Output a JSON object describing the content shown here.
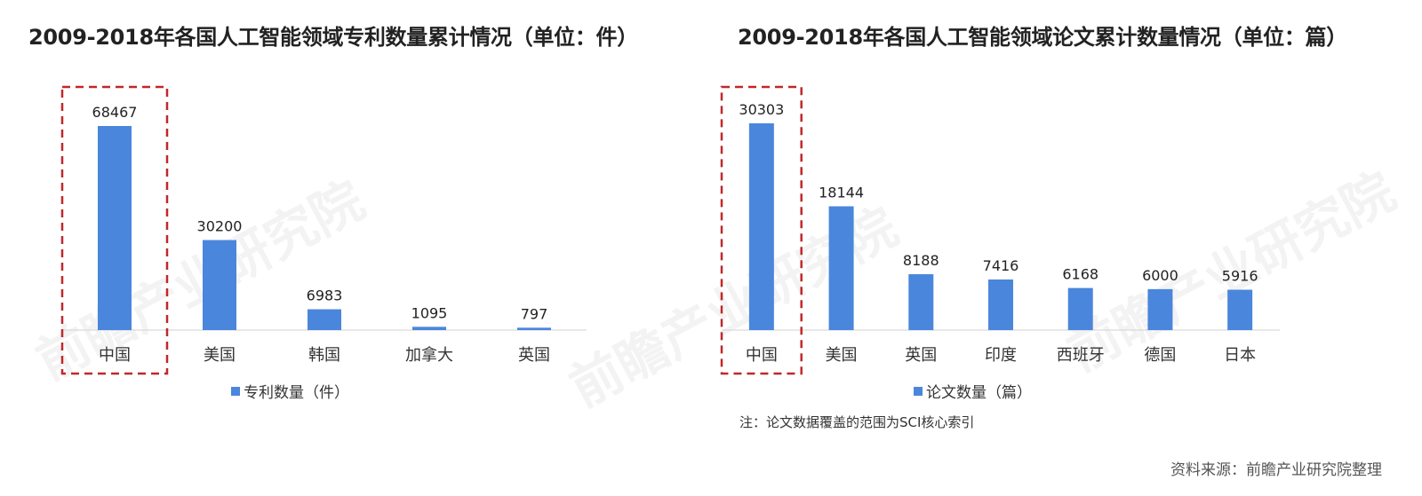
{
  "watermark": "前瞻产业研究院",
  "colors": {
    "bar": "#4a86dc",
    "highlight": "#c0282a"
  },
  "footer": {
    "source": "资料来源：前瞻产业研究院整理"
  },
  "chart_data": [
    {
      "type": "bar",
      "title": "2009-2018年各国人工智能领域专利数量累计情况（单位：件）",
      "categories": [
        "中国",
        "美国",
        "韩国",
        "加拿大",
        "英国"
      ],
      "series": [
        {
          "name": "专利数量（件）",
          "values": [
            68467,
            30200,
            6983,
            1095,
            797
          ]
        }
      ],
      "value_labels": [
        "68467",
        "30200",
        "6983",
        "1095",
        "797"
      ],
      "ylim": [
        0,
        68467
      ],
      "grid": false,
      "legend": "bottom",
      "highlighted_category": "中国"
    },
    {
      "type": "bar",
      "title": "2009-2018年各国人工智能领域论文累计数量情况（单位：篇）",
      "categories": [
        "中国",
        "美国",
        "英国",
        "印度",
        "西班牙",
        "德国",
        "日本"
      ],
      "series": [
        {
          "name": "论文数量（篇）",
          "values": [
            30303,
            18144,
            8188,
            7416,
            6168,
            6000,
            5916
          ]
        }
      ],
      "value_labels": [
        "30303",
        "18144",
        "8188",
        "7416",
        "6168",
        "6000",
        "5916"
      ],
      "ylim": [
        0,
        30303
      ],
      "grid": false,
      "legend": "bottom",
      "highlighted_category": "中国",
      "note": "注：论文数据覆盖的范围为SCI核心索引"
    }
  ]
}
